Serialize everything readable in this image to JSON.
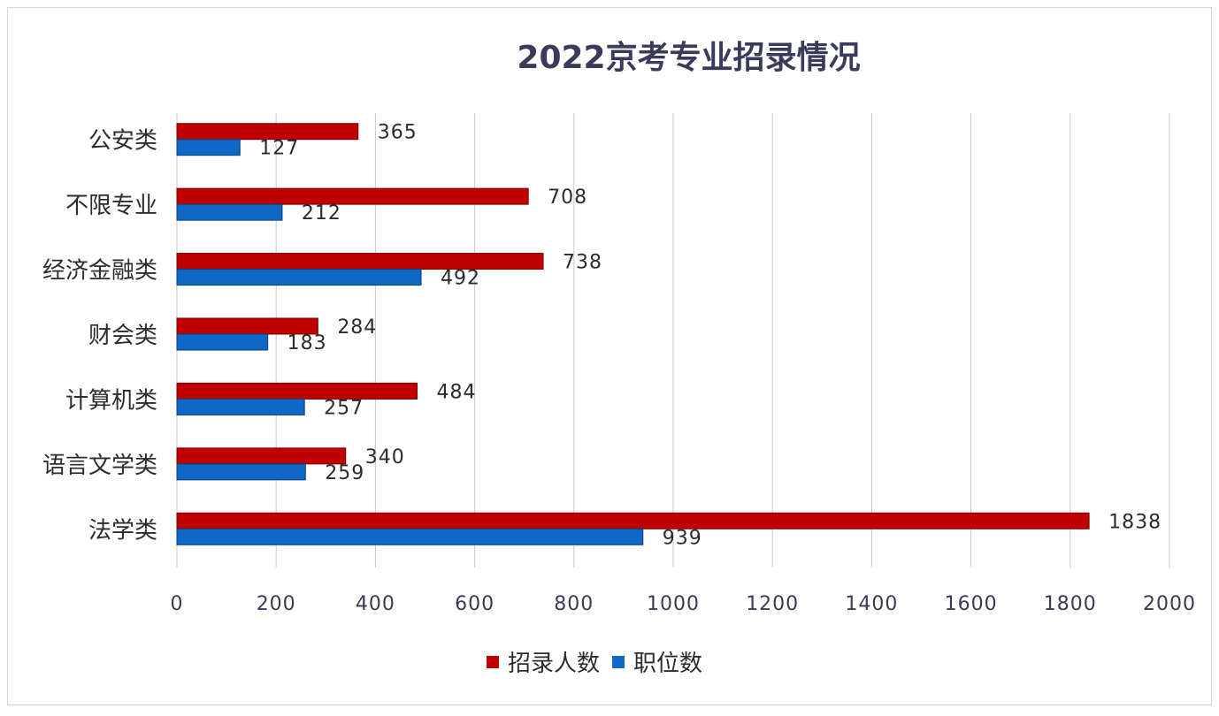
{
  "colors": {
    "recruits": "#c00000",
    "positions": "#0f67c6"
  },
  "chart_data": {
    "type": "bar",
    "orientation": "horizontal",
    "title": "2022京考专业招录情况",
    "categories": [
      "公安类",
      "不限专业",
      "经济金融类",
      "财会类",
      "计算机类",
      "语言文学类",
      "法学类"
    ],
    "series": [
      {
        "name": "招录人数",
        "values": [
          365,
          708,
          738,
          284,
          484,
          340,
          1838
        ]
      },
      {
        "name": "职位数",
        "values": [
          127,
          212,
          492,
          183,
          257,
          259,
          939
        ]
      }
    ],
    "xlim": [
      0,
      2000
    ],
    "xticks": [
      "0",
      "200",
      "400",
      "600",
      "800",
      "1000",
      "1200",
      "1400",
      "1600",
      "1800",
      "2000"
    ],
    "grid": true,
    "legend": "bottom"
  }
}
